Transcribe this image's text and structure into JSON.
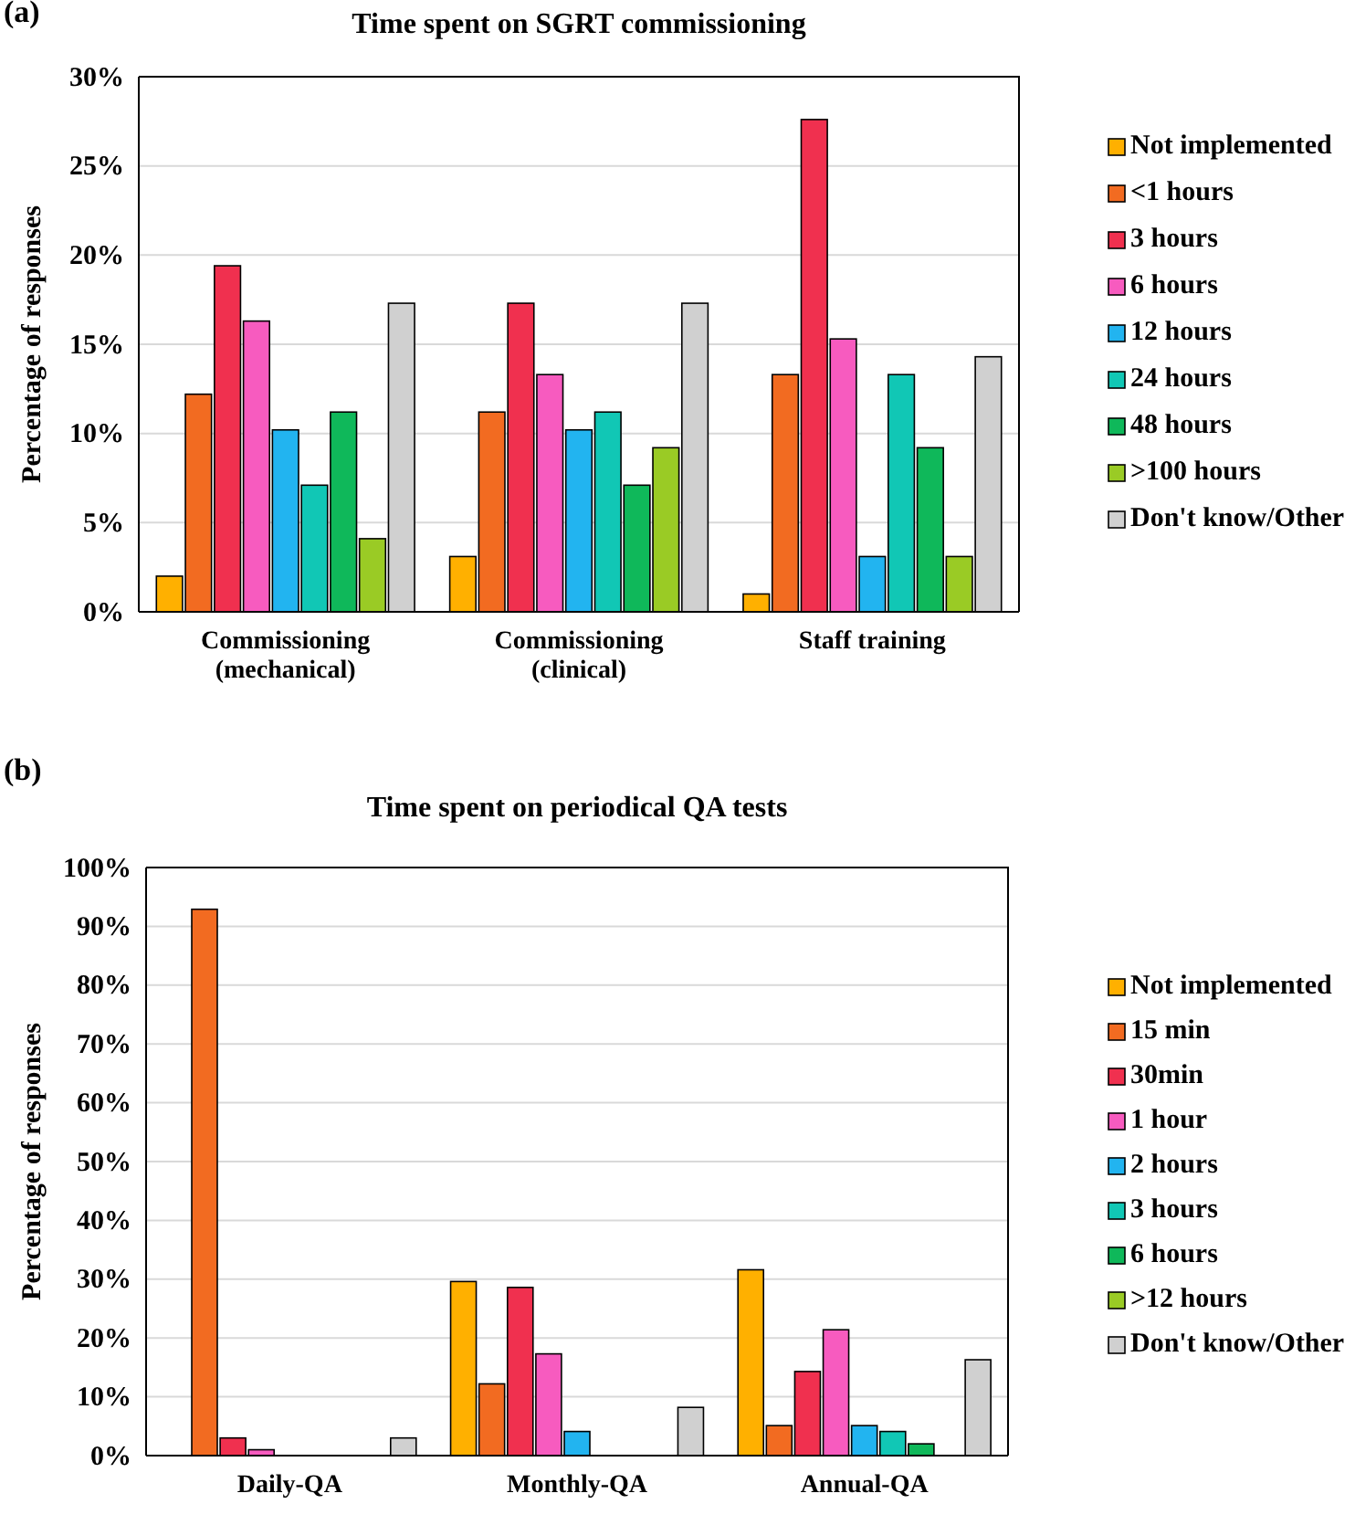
{
  "chart_data": [
    {
      "type": "bar",
      "title": "Time spent on SGRT commissioning",
      "ylabel": "Percentage of responses",
      "annotations": [
        "(a)"
      ],
      "categories": [
        "Commissioning (mechanical)",
        "Commissioning (clinical)",
        "Staff training"
      ],
      "ylim": [
        0,
        30
      ],
      "yticks": [
        {
          "value": 0,
          "label": "0%"
        },
        {
          "value": 5,
          "label": "5%"
        },
        {
          "value": 10,
          "label": "10%"
        },
        {
          "value": 15,
          "label": "15%"
        },
        {
          "value": 20,
          "label": "20%"
        },
        {
          "value": 25,
          "label": "25%"
        },
        {
          "value": 30,
          "label": "30%"
        }
      ],
      "grid": "y",
      "legend": "right",
      "series": [
        {
          "name": "Not implemented",
          "color": "#ffb000",
          "values": [
            2.0,
            3.1,
            1.0
          ]
        },
        {
          "name": "<1 hours",
          "color": "#f26b21",
          "values": [
            12.2,
            11.2,
            13.3
          ]
        },
        {
          "name": "3 hours",
          "color": "#f0304f",
          "values": [
            19.4,
            17.3,
            27.6
          ]
        },
        {
          "name": "6 hours",
          "color": "#f75bbf",
          "values": [
            16.3,
            13.3,
            15.3
          ]
        },
        {
          "name": "12 hours",
          "color": "#22b4f0",
          "values": [
            10.2,
            10.2,
            3.1
          ]
        },
        {
          "name": "24 hours",
          "color": "#11c7b5",
          "values": [
            7.1,
            11.2,
            13.3
          ]
        },
        {
          "name": "48 hours",
          "color": "#0fb85a",
          "values": [
            11.2,
            7.1,
            9.2
          ]
        },
        {
          "name": ">100 hours",
          "color": "#9acb25",
          "values": [
            4.1,
            9.2,
            3.1
          ]
        },
        {
          "name": "Don't know/Other",
          "color": "#d0d0d0",
          "values": [
            17.3,
            17.3,
            14.3
          ]
        }
      ]
    },
    {
      "type": "bar",
      "title": "Time spent on periodical QA tests",
      "ylabel": "Percentage of responses",
      "annotations": [
        "(b)"
      ],
      "categories": [
        "Daily-QA",
        "Monthly-QA",
        "Annual-QA"
      ],
      "ylim": [
        0,
        100
      ],
      "yticks": [
        {
          "value": 0,
          "label": "0%"
        },
        {
          "value": 10,
          "label": "10%"
        },
        {
          "value": 20,
          "label": "20%"
        },
        {
          "value": 30,
          "label": "30%"
        },
        {
          "value": 40,
          "label": "40%"
        },
        {
          "value": 50,
          "label": "50%"
        },
        {
          "value": 60,
          "label": "60%"
        },
        {
          "value": 70,
          "label": "70%"
        },
        {
          "value": 80,
          "label": "80%"
        },
        {
          "value": 90,
          "label": "90%"
        },
        {
          "value": 100,
          "label": "100%"
        }
      ],
      "grid": "y",
      "legend": "right",
      "series": [
        {
          "name": "Not implemented",
          "color": "#ffb000",
          "values": [
            0,
            29.6,
            31.6
          ]
        },
        {
          "name": "15 min",
          "color": "#f26b21",
          "values": [
            92.9,
            12.2,
            5.1
          ]
        },
        {
          "name": "30min",
          "color": "#f0304f",
          "values": [
            3.0,
            28.6,
            14.3
          ]
        },
        {
          "name": "1 hour",
          "color": "#f75bbf",
          "values": [
            1.0,
            17.3,
            21.4
          ]
        },
        {
          "name": "2 hours",
          "color": "#22b4f0",
          "values": [
            0,
            4.1,
            5.1
          ]
        },
        {
          "name": "3 hours",
          "color": "#11c7b5",
          "values": [
            0,
            0,
            4.1
          ]
        },
        {
          "name": "6 hours",
          "color": "#0fb85a",
          "values": [
            0,
            0,
            2.0
          ]
        },
        {
          "name": ">12 hours",
          "color": "#9acb25",
          "values": [
            0,
            0,
            0
          ]
        },
        {
          "name": "Don't know/Other",
          "color": "#d0d0d0",
          "values": [
            3.0,
            8.2,
            16.3
          ]
        }
      ]
    }
  ]
}
